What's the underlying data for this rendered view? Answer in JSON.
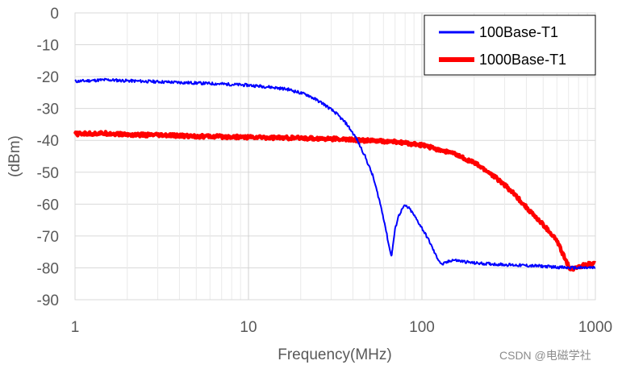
{
  "chart_data": {
    "type": "line",
    "title": "",
    "xlabel": "Frequency(MHz)",
    "ylabel": "(dBm)",
    "xscale": "log",
    "xlim": [
      1,
      1000
    ],
    "ylim": [
      -90,
      0
    ],
    "x_ticks": [
      "1",
      "10",
      "100",
      "1000"
    ],
    "y_ticks": [
      "0",
      "-10",
      "-20",
      "-30",
      "-40",
      "-50",
      "-60",
      "-70",
      "-80",
      "-90"
    ],
    "grid": true,
    "legend_position": "top-right",
    "series": [
      {
        "name": "100Base-T1",
        "color": "#0000ff",
        "x": [
          1,
          1.5,
          2,
          3,
          5,
          7,
          10,
          13,
          17,
          22,
          27,
          32,
          37,
          42,
          47,
          52,
          57,
          61,
          64,
          66,
          67,
          68,
          70,
          73,
          77,
          80,
          85,
          90,
          100,
          110,
          120,
          130,
          150,
          200,
          300,
          500,
          700,
          1000
        ],
        "y": [
          -21.5,
          -21,
          -21.3,
          -21.6,
          -22,
          -22.3,
          -22.7,
          -23.2,
          -24,
          -25.8,
          -28.5,
          -31.5,
          -35,
          -39.5,
          -45,
          -51,
          -59,
          -66,
          -72,
          -75.5,
          -76,
          -73,
          -68,
          -64,
          -61.5,
          -60.5,
          -61.5,
          -63.5,
          -67.5,
          -71.5,
          -76,
          -79,
          -77.5,
          -78.5,
          -79,
          -79.5,
          -80,
          -80
        ]
      },
      {
        "name": "1000Base-T1",
        "color": "#ff0000",
        "x": [
          1,
          1.5,
          2,
          3,
          5,
          10,
          20,
          30,
          40,
          50,
          70,
          100,
          150,
          200,
          250,
          300,
          350,
          400,
          450,
          500,
          550,
          600,
          640,
          680,
          720,
          760,
          800,
          900,
          1000
        ],
        "y": [
          -38,
          -37.8,
          -38.2,
          -38.4,
          -38.7,
          -39,
          -39.3,
          -39.5,
          -39.8,
          -40.1,
          -40.5,
          -41.5,
          -44,
          -47,
          -50.5,
          -54,
          -57.5,
          -61,
          -64,
          -66.5,
          -69,
          -71.5,
          -75,
          -78,
          -80.5,
          -80,
          -79.5,
          -79,
          -78.5
        ]
      }
    ]
  },
  "watermark": "CSDN @电磁学社"
}
